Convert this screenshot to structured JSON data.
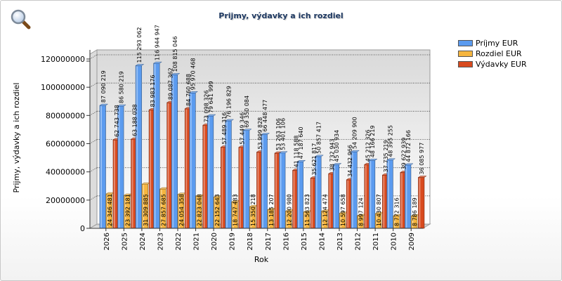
{
  "chart_data": {
    "type": "bar",
    "title": "Prijmy, výdavky a ich rozdiel",
    "xlabel": "Rok",
    "ylabel": "Prijmy, výdavky a ich rozdiel",
    "ylim": [
      0,
      150000000
    ],
    "yticks": [
      "0",
      "20000000",
      "40000000",
      "60000000",
      "80000000",
      "100000000",
      "120000000"
    ],
    "categories": [
      "2026",
      "2025",
      "2024",
      "2023",
      "2022",
      "2021",
      "2020",
      "2019",
      "2018",
      "2017",
      "2016",
      "2015",
      "2014",
      "2013",
      "2012",
      "2011",
      "2010",
      "2009"
    ],
    "series": [
      {
        "name": "Príjmy EUR",
        "color": "#5b9bef",
        "values": [
          87090219,
          86580219,
          115293062,
          116944947,
          108815046,
          95970468,
          79641999,
          76196829,
          69350084,
          66448477,
          53401106,
          47187640,
          50857417,
          45030934,
          54209900,
          48166219,
          48395255,
          44872166
        ],
        "labels": [
          "87 090 219",
          "86 580 219",
          "115 293 062",
          "116 944 947",
          "108 815 046",
          "95 970 468",
          "79 641 999",
          "76 196 829",
          "69 350 084",
          "66 448 477",
          "53 401 106",
          "47 187 640",
          "50 857 417",
          "45 030 934",
          "54 209 900",
          "48 166 219",
          "48 395 255",
          "44 872 166"
        ]
      },
      {
        "name": "Rozdiel EUR",
        "color": "#f5b53f",
        "values": [
          24346481,
          23392181,
          31309885,
          27857685,
          24054358,
          22823048,
          22152643,
          18747483,
          15350218,
          13185207,
          12200980,
          11563823,
          12124474,
          10597658,
          8997124,
          10430807,
          8772316,
          8786189
        ],
        "labels": [
          "24 346 481",
          "23 392 181",
          "31 309 885",
          "27 857 685",
          "24 054 358",
          "22 823 048",
          "22 152 643",
          "18 747 483",
          "15 350 218",
          "13 185 207",
          "12 200 980",
          "11 563 823",
          "12 124 474",
          "10 597 658",
          "8 997 124",
          "10 430 807",
          "8 772 316",
          "8 786 189"
        ]
      },
      {
        "name": "Výdavky EUR",
        "color": "#d84a1e",
        "values": [
          62743738,
          63188038,
          83983176,
          89087362,
          84760688,
          73098326,
          57489316,
          57449346,
          53999828,
          53263106,
          41118588,
          35621817,
          38732943,
          34432966,
          45212326,
          37735219,
          39622939,
          36085977
        ],
        "labels": [
          "62 743 738",
          "63 188 038",
          "83 983 176",
          "89 087 362",
          "84 760 688",
          "73 098 326",
          "57 489 316",
          "57 449 346",
          "53 999 828",
          "53 263 106",
          "41 118 588",
          "35 621 817",
          "38 732 943",
          "34 432 966",
          "45 212 326",
          "37 735 219",
          "39 622 939",
          "36 085 977"
        ]
      }
    ],
    "grid": true,
    "legend": "top-right"
  },
  "toolbar": {
    "zoom_icon": "magnifier-icon"
  }
}
